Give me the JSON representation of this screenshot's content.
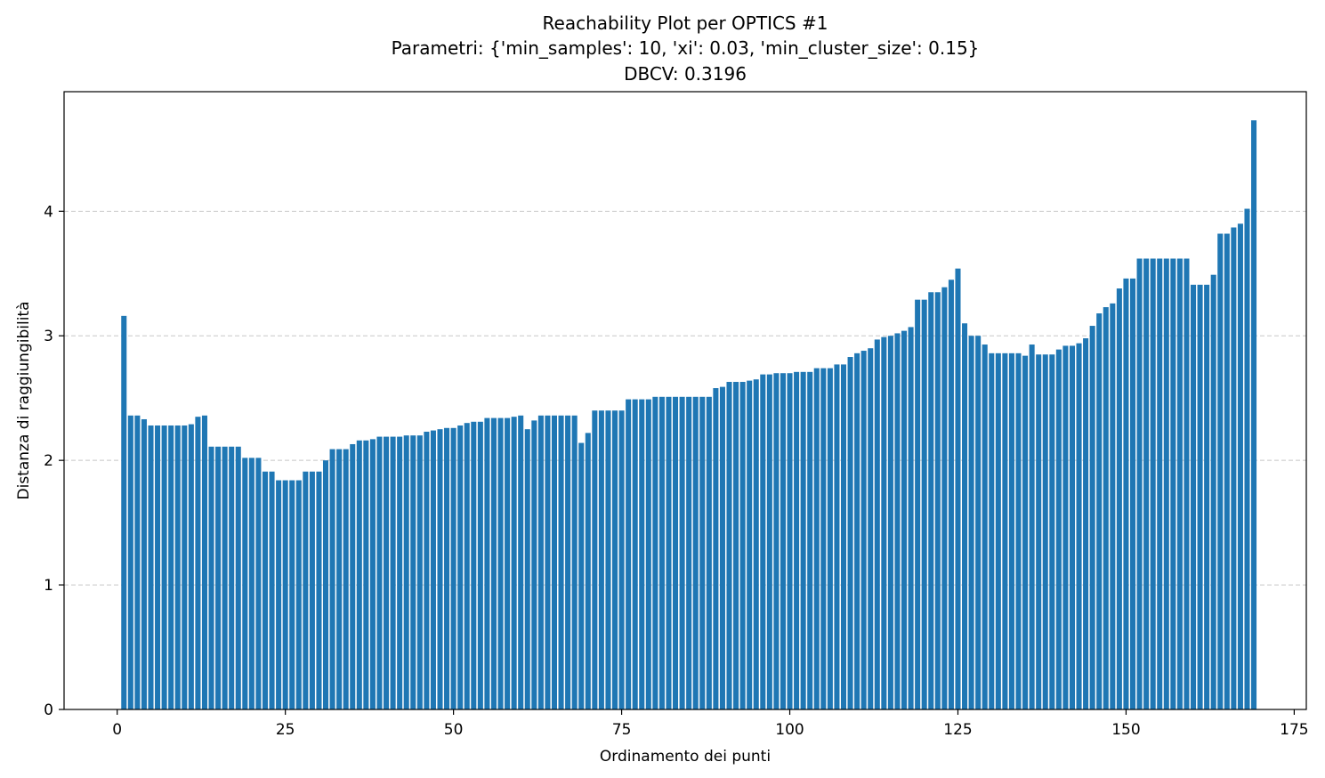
{
  "chart_data": {
    "type": "bar",
    "title": "Reachability Plot per OPTICS #1",
    "subtitle_lines": [
      "Parametri: {'min_samples': 10, 'xi': 0.03, 'min_cluster_size': 0.15}",
      "DBCV: 0.3196"
    ],
    "xlabel": "Ordinamento dei punti",
    "ylabel": "Distanza di raggiungibilità",
    "xlim": [
      -7.9,
      176.8
    ],
    "ylim": [
      0,
      4.96
    ],
    "xticks": [
      0,
      25,
      50,
      75,
      100,
      125,
      150,
      175
    ],
    "yticks": [
      0,
      1,
      2,
      3,
      4
    ],
    "grid": "y-dashed",
    "bar_color": "#1f77b4",
    "x_start": 1,
    "values": [
      3.16,
      2.36,
      2.36,
      2.33,
      2.28,
      2.28,
      2.28,
      2.28,
      2.28,
      2.28,
      2.29,
      2.35,
      2.36,
      2.11,
      2.11,
      2.11,
      2.11,
      2.11,
      2.02,
      2.02,
      2.02,
      1.91,
      1.91,
      1.84,
      1.84,
      1.84,
      1.84,
      1.91,
      1.91,
      1.91,
      2.0,
      2.09,
      2.09,
      2.09,
      2.13,
      2.16,
      2.16,
      2.17,
      2.19,
      2.19,
      2.19,
      2.19,
      2.2,
      2.2,
      2.2,
      2.23,
      2.24,
      2.25,
      2.26,
      2.26,
      2.28,
      2.3,
      2.31,
      2.31,
      2.34,
      2.34,
      2.34,
      2.34,
      2.35,
      2.36,
      2.25,
      2.32,
      2.36,
      2.36,
      2.36,
      2.36,
      2.36,
      2.36,
      2.14,
      2.22,
      2.4,
      2.4,
      2.4,
      2.4,
      2.4,
      2.49,
      2.49,
      2.49,
      2.49,
      2.51,
      2.51,
      2.51,
      2.51,
      2.51,
      2.51,
      2.51,
      2.51,
      2.51,
      2.58,
      2.59,
      2.63,
      2.63,
      2.63,
      2.64,
      2.65,
      2.69,
      2.69,
      2.7,
      2.7,
      2.7,
      2.71,
      2.71,
      2.71,
      2.74,
      2.74,
      2.74,
      2.77,
      2.77,
      2.83,
      2.86,
      2.88,
      2.9,
      2.97,
      2.99,
      3.0,
      3.02,
      3.04,
      3.07,
      3.29,
      3.29,
      3.35,
      3.35,
      3.39,
      3.45,
      3.54,
      3.1,
      3.0,
      3.0,
      2.93,
      2.86,
      2.86,
      2.86,
      2.86,
      2.86,
      2.84,
      2.93,
      2.85,
      2.85,
      2.85,
      2.89,
      2.92,
      2.92,
      2.94,
      2.98,
      3.08,
      3.18,
      3.23,
      3.26,
      3.38,
      3.46,
      3.46,
      3.62,
      3.62,
      3.62,
      3.62,
      3.62,
      3.62,
      3.62,
      3.62,
      3.41,
      3.41,
      3.41,
      3.49,
      3.82,
      3.82,
      3.87,
      3.9,
      4.02,
      4.73
    ]
  }
}
